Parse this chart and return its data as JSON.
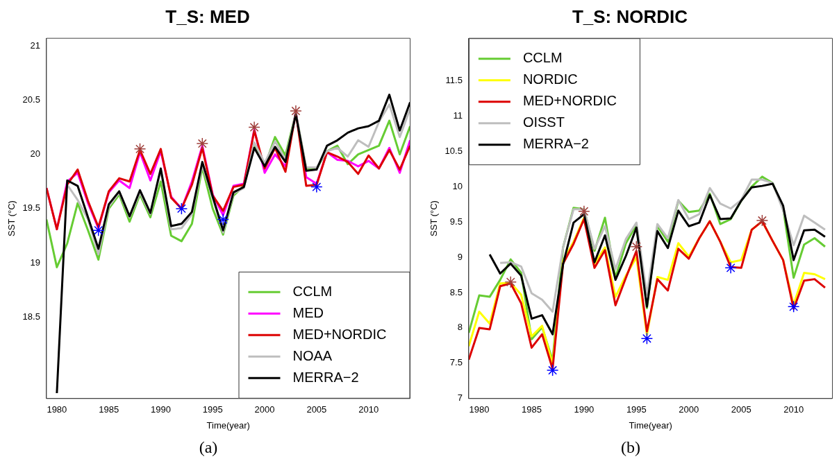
{
  "chart_data": [
    {
      "type": "line",
      "title": "T_S: MED",
      "xlabel": "Time(year)",
      "ylabel": "SST (°C)",
      "annotations": [
        "(a)"
      ],
      "legend": "bottom right",
      "grid": false,
      "x": [
        1979,
        1980,
        1981,
        1982,
        1983,
        1984,
        1985,
        1986,
        1987,
        1988,
        1989,
        1990,
        1991,
        1992,
        1993,
        1994,
        1995,
        1996,
        1997,
        1998,
        1999,
        2000,
        2001,
        2002,
        2003,
        2004,
        2005,
        2006,
        2007,
        2008,
        2009,
        2010,
        2011,
        2012,
        2013,
        2014
      ],
      "xlim": [
        1979,
        2014
      ],
      "xticks": [
        1980,
        1985,
        1990,
        1995,
        2000,
        2005,
        2010
      ],
      "ylim": [
        17.75,
        21.07
      ],
      "yticks": [
        18.5,
        19,
        19.5,
        20,
        20.5,
        21
      ],
      "series": [
        {
          "name": "CCLM",
          "color": "#66cc33",
          "values": [
            19.4,
            18.96,
            19.18,
            19.55,
            19.3,
            19.03,
            19.5,
            19.63,
            19.38,
            19.63,
            19.42,
            19.75,
            19.25,
            19.2,
            19.36,
            19.88,
            19.5,
            19.26,
            19.62,
            19.71,
            20.1,
            19.89,
            20.16,
            19.99,
            20.38,
            19.87,
            19.87,
            20.03,
            20.08,
            19.91,
            20.0,
            20.04,
            20.08,
            20.31,
            20.0,
            20.26
          ]
        },
        {
          "name": "MED",
          "color": "#ff00ff",
          "values": [
            19.69,
            19.31,
            19.75,
            19.83,
            19.55,
            19.32,
            19.65,
            19.76,
            19.69,
            20.02,
            19.76,
            20.03,
            19.61,
            19.5,
            19.75,
            20.08,
            19.63,
            19.44,
            19.71,
            19.73,
            20.23,
            19.83,
            20.0,
            19.89,
            20.39,
            19.79,
            19.73,
            20.02,
            19.95,
            19.94,
            19.89,
            19.94,
            19.87,
            20.06,
            19.83,
            20.13
          ]
        },
        {
          "name": "MED+NORDIC",
          "color": "#dd0000",
          "values": [
            19.69,
            19.31,
            19.72,
            19.86,
            19.57,
            19.33,
            19.66,
            19.78,
            19.75,
            20.04,
            19.82,
            20.05,
            19.6,
            19.5,
            19.72,
            20.06,
            19.62,
            19.48,
            19.7,
            19.72,
            20.22,
            19.87,
            20.06,
            19.84,
            20.39,
            19.71,
            19.72,
            20.02,
            19.98,
            19.93,
            19.82,
            19.99,
            19.87,
            20.04,
            19.86,
            20.08
          ]
        },
        {
          "name": "NOAA",
          "color": "#bebebe",
          "values": [
            null,
            null,
            19.72,
            19.58,
            19.4,
            19.08,
            19.52,
            19.65,
            19.42,
            19.65,
            19.45,
            19.85,
            19.31,
            19.32,
            19.45,
            19.9,
            19.6,
            19.28,
            19.64,
            19.69,
            20.11,
            19.92,
            20.12,
            19.95,
            20.38,
            19.88,
            19.88,
            20.03,
            20.06,
            19.98,
            20.13,
            20.07,
            20.3,
            20.46,
            20.16,
            20.42
          ]
        },
        {
          "name": "MERRA−2",
          "color": "#000000",
          "values": [
            null,
            17.8,
            19.76,
            19.71,
            19.42,
            19.13,
            19.54,
            19.66,
            19.43,
            19.67,
            19.46,
            19.87,
            19.34,
            19.36,
            19.47,
            19.93,
            19.61,
            19.3,
            19.65,
            19.7,
            20.06,
            19.89,
            20.07,
            19.93,
            20.37,
            19.85,
            19.86,
            20.08,
            20.13,
            20.2,
            20.24,
            20.26,
            20.31,
            20.55,
            20.22,
            20.48
          ]
        },
        {
          "type": "scatter",
          "marker": "cross",
          "color": "#a0403c",
          "x": [
            1988,
            1994,
            1999,
            2003
          ],
          "values": [
            20.05,
            20.1,
            20.25,
            20.4
          ]
        },
        {
          "type": "scatter",
          "marker": "cross",
          "color": "#0000ff",
          "x": [
            1984,
            1992,
            1996,
            2005
          ],
          "values": [
            19.3,
            19.5,
            19.4,
            19.7
          ]
        }
      ]
    },
    {
      "type": "line",
      "title": "T_S: NORDIC",
      "xlabel": "Time(year)",
      "ylabel": "SST (°C)",
      "annotations": [
        "(b)"
      ],
      "legend": "top left",
      "grid": false,
      "x": [
        1979,
        1980,
        1981,
        1982,
        1983,
        1984,
        1985,
        1986,
        1987,
        1988,
        1989,
        1990,
        1991,
        1992,
        1993,
        1994,
        1995,
        1996,
        1997,
        1998,
        1999,
        2000,
        2001,
        2002,
        2003,
        2004,
        2005,
        2006,
        2007,
        2008,
        2009,
        2010,
        2011,
        2012,
        2013
      ],
      "xlim": [
        1979,
        2013.7
      ],
      "xticks": [
        1980,
        1985,
        1990,
        1995,
        2000,
        2005,
        2010
      ],
      "ylim": [
        7,
        12.1
      ],
      "yticks": [
        7,
        7.5,
        8,
        8.5,
        9,
        9.5,
        10,
        10.5,
        11,
        11.5
      ],
      "series": [
        {
          "name": "CCLM",
          "color": "#66cc33",
          "values": [
            7.93,
            8.46,
            8.44,
            8.68,
            8.97,
            8.78,
            7.84,
            8.01,
            7.54,
            9.14,
            9.7,
            9.68,
            9.09,
            9.56,
            8.71,
            9.2,
            9.46,
            8.28,
            9.44,
            9.22,
            9.8,
            9.64,
            9.66,
            9.9,
            9.47,
            9.54,
            9.8,
            10.0,
            10.14,
            10.05,
            9.69,
            8.71,
            9.18,
            9.27,
            9.15
          ]
        },
        {
          "name": "NORDIC",
          "color": "#ffff00",
          "values": [
            7.74,
            8.23,
            8.06,
            8.63,
            8.64,
            8.47,
            7.88,
            8.03,
            7.49,
            8.95,
            9.22,
            9.56,
            8.91,
            9.14,
            8.44,
            8.74,
            9.0,
            7.9,
            8.72,
            8.68,
            9.2,
            9.01,
            9.27,
            9.51,
            9.22,
            8.93,
            8.96,
            9.39,
            9.51,
            9.23,
            8.96,
            8.33,
            8.78,
            8.76,
            8.69
          ]
        },
        {
          "name": "MED+NORDIC",
          "color": "#dd0000",
          "values": [
            7.55,
            8.0,
            7.98,
            8.59,
            8.63,
            8.35,
            7.72,
            7.91,
            7.42,
            8.91,
            9.19,
            9.54,
            8.85,
            9.1,
            8.32,
            8.71,
            9.09,
            7.95,
            8.69,
            8.53,
            9.12,
            8.98,
            9.27,
            9.51,
            9.22,
            8.86,
            8.85,
            9.39,
            9.51,
            9.23,
            8.96,
            8.27,
            8.67,
            8.69,
            8.57
          ]
        },
        {
          "name": "OISST",
          "color": "#bebebe",
          "values": [
            null,
            null,
            null,
            8.92,
            8.93,
            8.87,
            8.49,
            8.4,
            8.23,
            9.14,
            9.68,
            9.68,
            9.12,
            9.44,
            8.83,
            9.26,
            9.49,
            8.47,
            9.47,
            9.27,
            9.81,
            9.54,
            9.61,
            9.98,
            9.76,
            9.69,
            9.81,
            10.1,
            10.1,
            10.05,
            9.66,
            9.17,
            9.59,
            9.49,
            9.39
          ]
        },
        {
          "name": "MERRA−2",
          "color": "#000000",
          "values": [
            null,
            null,
            9.04,
            8.77,
            8.91,
            8.74,
            8.13,
            8.18,
            7.91,
            8.9,
            9.49,
            9.61,
            8.93,
            9.31,
            8.68,
            9.02,
            9.42,
            8.3,
            9.37,
            9.13,
            9.66,
            9.44,
            9.49,
            9.88,
            9.54,
            9.55,
            9.8,
            9.99,
            10.01,
            10.04,
            9.73,
            8.96,
            9.38,
            9.39,
            9.29
          ]
        },
        {
          "type": "scatter",
          "marker": "cross",
          "color": "#a0403c",
          "x": [
            1983,
            1990,
            1995,
            2007
          ],
          "values": [
            8.65,
            9.65,
            9.15,
            9.52
          ]
        },
        {
          "type": "scatter",
          "marker": "cross",
          "color": "#0000ff",
          "x": [
            1987,
            1996,
            2004,
            2010
          ],
          "values": [
            7.4,
            7.85,
            8.85,
            8.3
          ]
        }
      ]
    }
  ]
}
